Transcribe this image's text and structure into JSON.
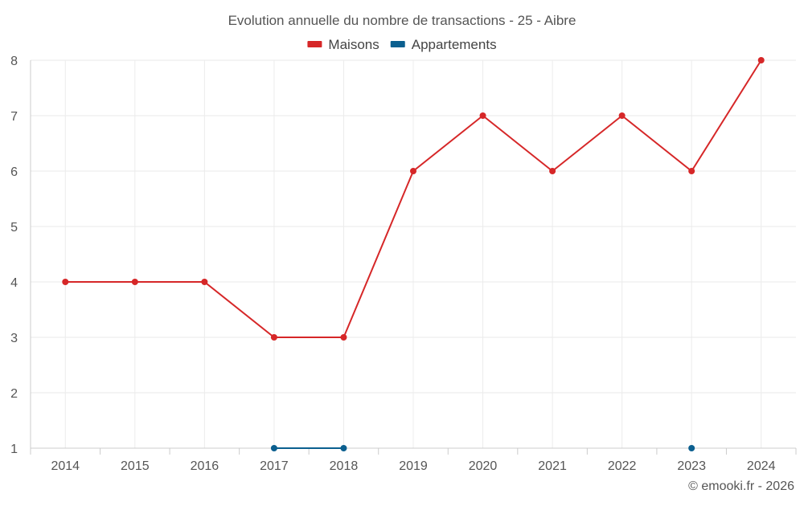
{
  "chart_data": {
    "type": "line",
    "title": "Evolution annuelle du nombre de transactions - 25 - Aibre",
    "categories": [
      "2014",
      "2015",
      "2016",
      "2017",
      "2018",
      "2019",
      "2020",
      "2021",
      "2022",
      "2023",
      "2024"
    ],
    "series": [
      {
        "name": "Maisons",
        "color": "#d62728",
        "values": [
          4,
          4,
          4,
          3,
          3,
          6,
          7,
          6,
          7,
          6,
          8
        ]
      },
      {
        "name": "Appartements",
        "color": "#0b5f8f",
        "values": [
          null,
          null,
          null,
          1,
          1,
          null,
          null,
          null,
          null,
          1,
          null
        ]
      }
    ],
    "yticks": [
      1,
      2,
      3,
      4,
      5,
      6,
      7,
      8
    ],
    "ylim": [
      1,
      8
    ],
    "xlabel": "",
    "ylabel": "",
    "grid": true,
    "legend": "top-center"
  },
  "credit": "© emooki.fr - 2026"
}
